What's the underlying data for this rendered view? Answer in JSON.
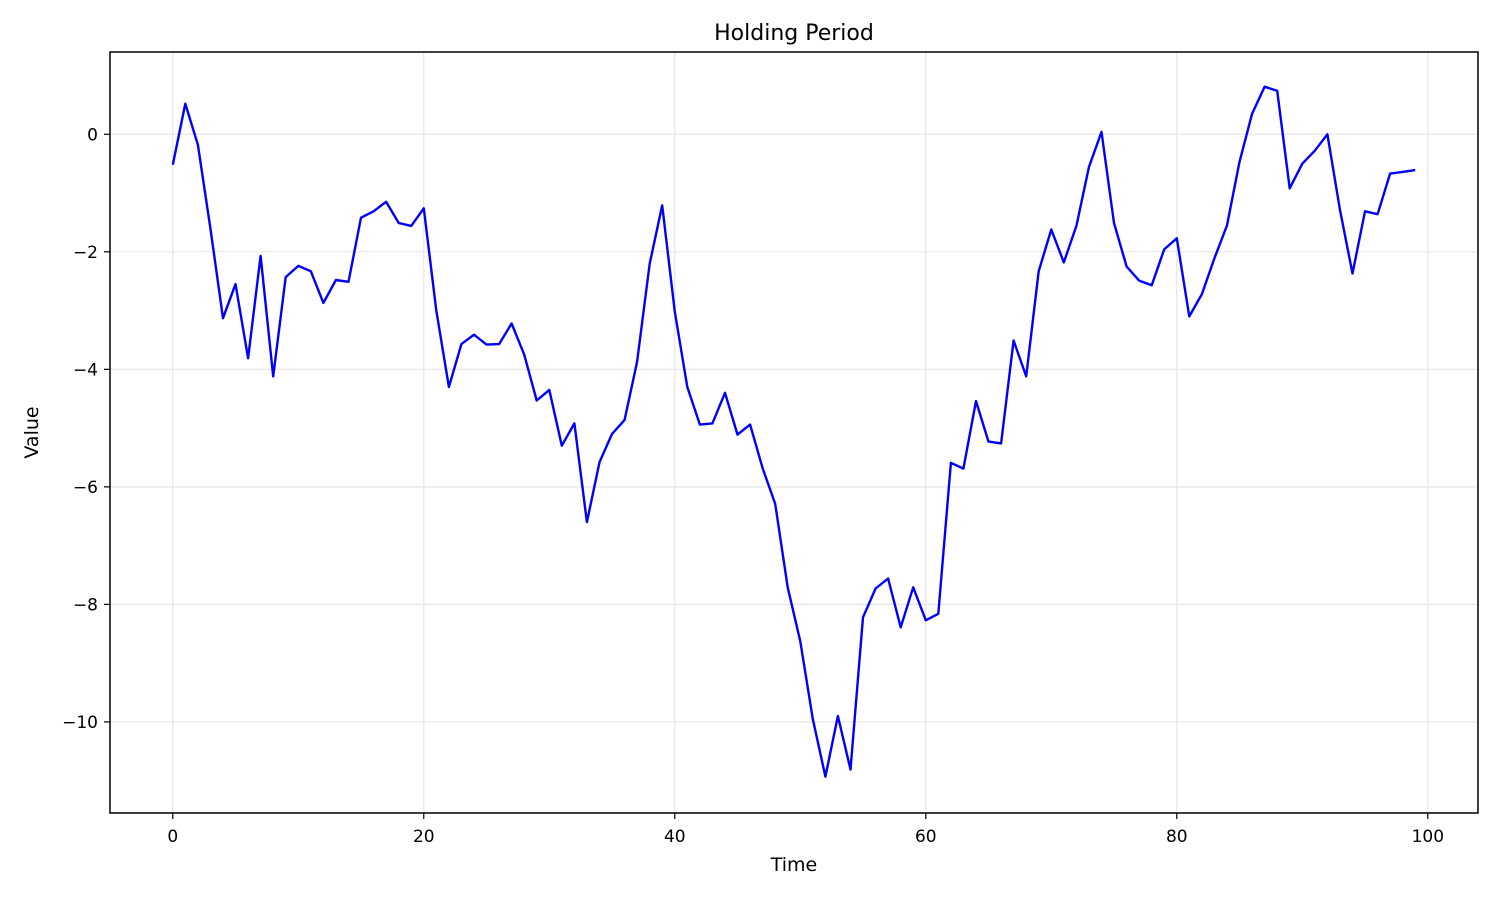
{
  "chart_data": {
    "type": "line",
    "title": "Holding Period",
    "xlabel": "Time",
    "ylabel": "Value",
    "xlim": [
      -5,
      104
    ],
    "ylim": [
      -11.55,
      1.4
    ],
    "grid": true,
    "legend": "none",
    "x_ticks": [
      0,
      20,
      40,
      60,
      80,
      100
    ],
    "y_ticks": [
      0,
      -2,
      -4,
      -6,
      -8,
      -10
    ],
    "x_tick_labels": [
      "0",
      "20",
      "40",
      "60",
      "80",
      "100"
    ],
    "y_tick_labels": [
      "0",
      "−2",
      "−4",
      "−6",
      "−8",
      "−10"
    ],
    "series": [
      {
        "color": "#0000ff",
        "x": [
          0,
          1,
          2,
          3,
          4,
          5,
          6,
          7,
          8,
          9,
          10,
          11,
          12,
          13,
          14,
          15,
          16,
          17,
          18,
          19,
          20,
          21,
          22,
          23,
          24,
          25,
          26,
          27,
          28,
          29,
          30,
          31,
          32,
          33,
          34,
          35,
          36,
          37,
          38,
          39,
          40,
          41,
          42,
          43,
          44,
          45,
          46,
          47,
          48,
          49,
          50,
          51,
          52,
          53,
          54,
          55,
          56,
          57,
          58,
          59,
          60,
          61,
          62,
          63,
          64,
          65,
          66,
          67,
          68,
          69,
          70,
          71,
          72,
          73,
          74,
          75,
          76,
          77,
          78,
          79,
          80,
          81,
          82,
          83,
          84,
          85,
          86,
          87,
          88,
          89,
          90,
          91,
          92,
          93,
          94,
          95,
          96,
          97,
          98,
          99
        ],
        "y": [
          -0.52,
          0.52,
          -0.18,
          -1.6,
          -3.13,
          -2.55,
          -3.81,
          -2.07,
          -4.12,
          -2.43,
          -2.24,
          -2.33,
          -2.87,
          -2.48,
          -2.51,
          -1.42,
          -1.31,
          -1.15,
          -1.51,
          -1.56,
          -1.26,
          -3.0,
          -4.3,
          -3.57,
          -3.41,
          -3.58,
          -3.57,
          -3.22,
          -3.75,
          -4.53,
          -4.35,
          -5.3,
          -4.92,
          -6.6,
          -5.58,
          -5.1,
          -4.86,
          -3.87,
          -2.2,
          -1.21,
          -3.02,
          -4.3,
          -4.94,
          -4.92,
          -4.4,
          -5.11,
          -4.94,
          -5.68,
          -6.29,
          -7.71,
          -8.63,
          -9.95,
          -10.93,
          -9.9,
          -10.81,
          -8.22,
          -7.73,
          -7.56,
          -8.39,
          -7.71,
          -8.27,
          -8.16,
          -5.59,
          -5.69,
          -4.54,
          -5.23,
          -5.26,
          -3.51,
          -4.12,
          -2.33,
          -1.62,
          -2.18,
          -1.56,
          -0.56,
          0.04,
          -1.51,
          -2.25,
          -2.49,
          -2.57,
          -1.96,
          -1.77,
          -3.1,
          -2.72,
          -2.11,
          -1.55,
          -0.47,
          0.35,
          0.81,
          0.74,
          -0.92,
          -0.5,
          -0.28,
          0.0,
          -1.28,
          -2.37,
          -1.31,
          -1.36,
          -0.67,
          -0.64,
          -0.61
        ]
      }
    ]
  }
}
